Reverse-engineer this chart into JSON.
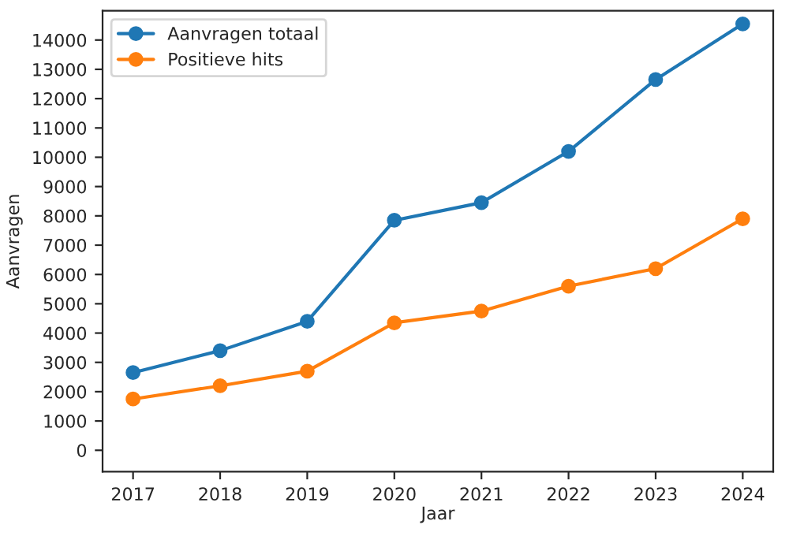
{
  "chart_data": {
    "type": "line",
    "xlabel": "Jaar",
    "ylabel": "Aanvragen",
    "x": [
      2017,
      2018,
      2019,
      2020,
      2021,
      2022,
      2023,
      2024
    ],
    "series": [
      {
        "name": "Aanvragen totaal",
        "color": "#1f77b4",
        "values": [
          2650,
          3400,
          4400,
          7850,
          8450,
          10200,
          12650,
          14550
        ]
      },
      {
        "name": "Positieve hits",
        "color": "#ff7f0e",
        "values": [
          1750,
          2200,
          2700,
          4350,
          4750,
          5600,
          6200,
          7900
        ]
      }
    ],
    "xlim": [
      2016.65,
      2024.35
    ],
    "xticks": [
      2017,
      2018,
      2019,
      2020,
      2021,
      2022,
      2023,
      2024
    ],
    "ylim": [
      -730,
      15000
    ],
    "yticks": [
      0,
      1000,
      2000,
      3000,
      4000,
      5000,
      6000,
      7000,
      8000,
      9000,
      10000,
      11000,
      12000,
      13000,
      14000
    ],
    "marker": "circle",
    "line_style": "solid",
    "grid": false,
    "legend": "top left"
  }
}
